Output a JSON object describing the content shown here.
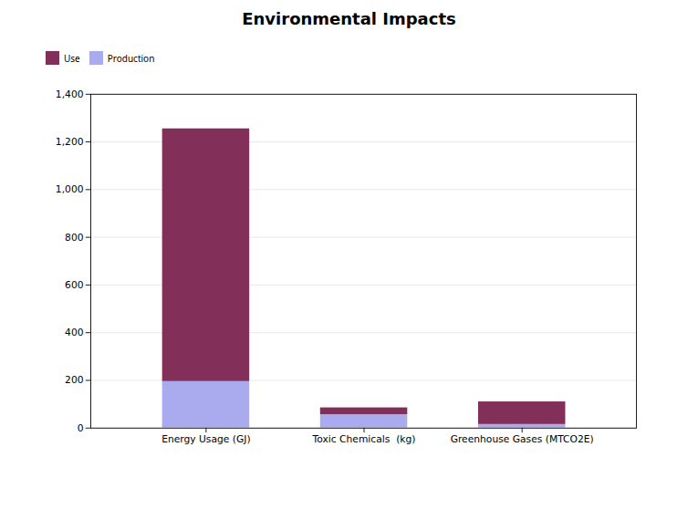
{
  "chart_data": {
    "type": "bar",
    "title": "Environmental Impacts",
    "categories": [
      "Energy Usage (GJ)",
      "Toxic Chemicals  (kg)",
      "Greenhouse Gases (MTCO2E)"
    ],
    "series": [
      {
        "name": "Use",
        "color": "#82305A",
        "values": [
          1060,
          30,
          95
        ]
      },
      {
        "name": "Production",
        "color": "#AAAAEE",
        "values": [
          195,
          55,
          15
        ]
      }
    ],
    "stacked": true,
    "ylim": [
      0,
      1400
    ],
    "yticks": [
      0,
      200,
      400,
      600,
      800,
      1000,
      1200,
      1400
    ],
    "grid": true
  }
}
